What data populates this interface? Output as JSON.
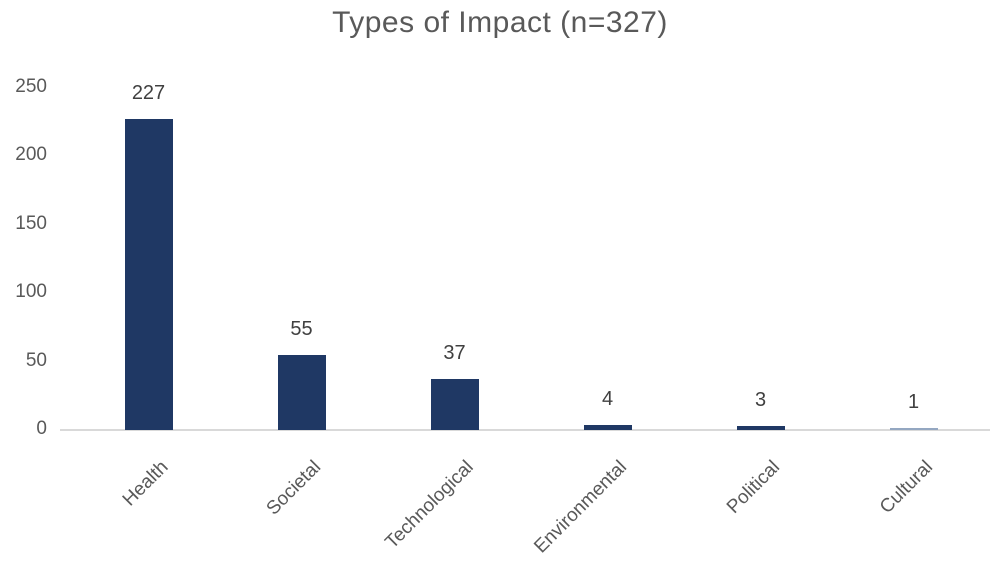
{
  "chart_data": {
    "type": "bar",
    "title": "Types of Impact (n=327)",
    "categories": [
      "Health",
      "Societal",
      "Technological",
      "Environmental",
      "Political",
      "Cultural"
    ],
    "values": [
      227,
      55,
      37,
      4,
      3,
      1
    ],
    "data_labels": [
      "227",
      "55",
      "37",
      "4",
      "3",
      "1"
    ],
    "xlabel": "",
    "ylabel": "",
    "ylim": [
      0,
      250
    ],
    "yticks": [
      0,
      50,
      100,
      150,
      200,
      250
    ],
    "grid": false,
    "legend": "none",
    "bar_colors": [
      "#1F3864",
      "#1F3864",
      "#1F3864",
      "#1F3864",
      "#1F3864",
      "#94A7C1"
    ],
    "colors": {
      "title": "#595959",
      "axis_labels": "#595959",
      "value_labels": "#404040",
      "axis_line": "#D9D9D9",
      "background": "#FFFFFF"
    }
  }
}
